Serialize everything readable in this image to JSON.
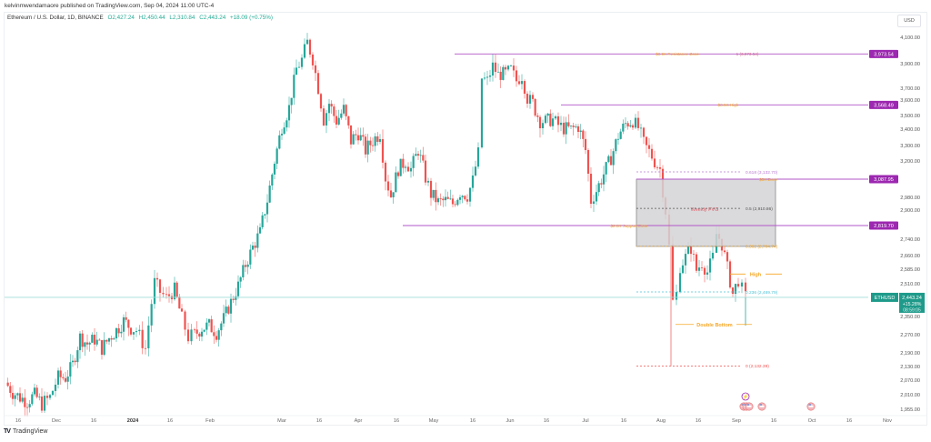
{
  "header": {
    "published": "kelvinmwendamaore published on TradingView.com, Sep 04, 2024 11:00 UTC-4"
  },
  "legend": {
    "symbol": "Ethereum / U.S. Dollar, 1D, BINANCE",
    "open": "O2,427.24",
    "high": "H2,450.44",
    "low": "L2,310.84",
    "close": "C2,443.24",
    "change": "+18.09 (+0.75%)"
  },
  "axis": {
    "currency": "USD"
  },
  "footer": {
    "brand": "TradingView"
  },
  "colors": {
    "up": "#26a69a",
    "down": "#ef5350",
    "level_line": "#b256c9",
    "level_badge": "#9c27b0",
    "annotation_orange": "#f5a623",
    "fib_purple": "#b97bd1",
    "fib_blue": "#4ec3d6",
    "fib_red": "#ef5350",
    "price_line": "#9fdcd9",
    "last_price_bg": "#1e9a8a",
    "zone_fill": "#d4d4d6"
  },
  "chart_data": {
    "type": "candlestick",
    "title": "Ethereum / U.S. Dollar, 1D, BINANCE",
    "xlabel": "",
    "ylabel": "USD",
    "x_ticks": [
      "16",
      "Dec",
      "16",
      "2024",
      "16",
      "Feb",
      "Mar",
      "16",
      "Apr",
      "16",
      "May",
      "16",
      "Jun",
      "16",
      "Jul",
      "16",
      "Aug",
      "16",
      "Sep",
      "16",
      "Oct",
      "16",
      "Nov"
    ],
    "y_ticks": [
      4100,
      3900,
      3700,
      3600,
      3500,
      3400,
      3300,
      3200,
      2980,
      2900,
      2740,
      2660,
      2585,
      2510,
      2350,
      2270,
      2190,
      2130,
      2070,
      2010,
      1955
    ],
    "ylim": [
      1955,
      4100
    ],
    "last_price": {
      "symbol": "ETHUSD",
      "price": "2,443.24",
      "change_pct": "+15.28%",
      "countdown": "08:59:05"
    },
    "price_levels": [
      {
        "value": "3,973.54",
        "label": "$3.9K Resistance Zone",
        "fib": "1 (3,973.54)"
      },
      {
        "value": "3,568.49",
        "label": "$3.5K High"
      },
      {
        "value": "3,087.95",
        "label": "$3K Zone"
      },
      {
        "value": "2,819.70",
        "label": "$2.8K Support Zone"
      }
    ],
    "fib_levels": [
      {
        "ratio": "1",
        "value": "3,973.54"
      },
      {
        "ratio": "0.618",
        "value": "3,132.70"
      },
      {
        "ratio": "0.5",
        "value": "2,910.86"
      },
      {
        "ratio": "0.382",
        "value": "2,704.74"
      },
      {
        "ratio": "0.236",
        "value": "2,469.79"
      },
      {
        "ratio": "0",
        "value": "2,132.39"
      }
    ],
    "annotations": [
      "Weekly FVG",
      "High",
      "Double Bottom"
    ],
    "series": [
      {
        "name": "ETHUSD daily close (approx.)",
        "dates": [
          "2023-11-10",
          "2023-11-20",
          "2023-12-01",
          "2023-12-10",
          "2023-12-20",
          "2024-01-01",
          "2024-01-12",
          "2024-01-23",
          "2024-02-01",
          "2024-02-10",
          "2024-02-20",
          "2024-03-01",
          "2024-03-12",
          "2024-03-20",
          "2024-04-01",
          "2024-04-09",
          "2024-04-17",
          "2024-05-01",
          "2024-05-15",
          "2024-05-22",
          "2024-05-27",
          "2024-06-06",
          "2024-06-15",
          "2024-06-24",
          "2024-07-05",
          "2024-07-15",
          "2024-07-22",
          "2024-08-01",
          "2024-08-05",
          "2024-08-08",
          "2024-08-20",
          "2024-08-24",
          "2024-08-27",
          "2024-09-04"
        ],
        "values": [
          2050,
          1990,
          2080,
          2250,
          2200,
          2350,
          2550,
          2220,
          2300,
          2500,
          2950,
          3400,
          3950,
          3550,
          3500,
          3580,
          3100,
          3000,
          2900,
          3760,
          3900,
          3700,
          3500,
          3380,
          3000,
          3300,
          3450,
          3200,
          2400,
          2650,
          2600,
          2780,
          2500,
          2443
        ]
      }
    ]
  },
  "levels": {
    "l3973": {
      "badge": "3,973.54",
      "text": "$3.9K Resistance Zone",
      "fib": "1 (3,973.54)"
    },
    "l3568": {
      "badge": "3,568.49",
      "text": "$3.5K High"
    },
    "l3087": {
      "badge": "3,087.95",
      "text": "$3K Zone"
    },
    "l2819": {
      "badge": "2,819.70",
      "text": "$2.8K Support Zone"
    },
    "fvg": "Weekly FVG",
    "fib618": "0.618 (3,132.70)",
    "fib5": "0.5 (2,910.86)",
    "fib382": "0.382 (2,704.74)",
    "fib236": "0.236 (2,469.79)",
    "fib0": "0 (2,132.39)",
    "high": "High",
    "double_bottom": "Double Bottom"
  },
  "last": {
    "symbol": "ETHUSD",
    "price": "2,443.24",
    "change": "+15.28%",
    "countdown": "08:59:05"
  }
}
